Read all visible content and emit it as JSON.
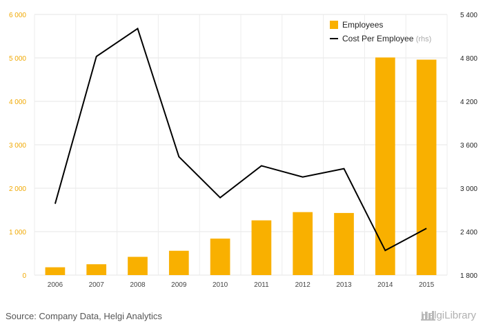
{
  "chart_data": {
    "type": "bar",
    "categories": [
      "2006",
      "2007",
      "2008",
      "2009",
      "2010",
      "2011",
      "2012",
      "2013",
      "2014",
      "2015"
    ],
    "series": [
      {
        "name": "Employees",
        "kind": "bar",
        "axis": "left",
        "color": "#f9b000",
        "values": [
          180,
          250,
          420,
          560,
          840,
          1260,
          1450,
          1430,
          5010,
          4960
        ]
      },
      {
        "name": "Cost Per Employee",
        "name_suffix": "(rhs)",
        "kind": "line",
        "axis": "right",
        "color": "#000000",
        "values": [
          2785,
          4820,
          5205,
          3435,
          2870,
          3310,
          3155,
          3270,
          2140,
          2445
        ]
      }
    ],
    "y_left": {
      "min": 0,
      "max": 6000,
      "ticks": [
        0,
        1000,
        2000,
        3000,
        4000,
        5000,
        6000
      ],
      "tick_labels": [
        "0",
        "1 000",
        "2 000",
        "3 000",
        "4 000",
        "5 000",
        "6 000"
      ]
    },
    "y_right": {
      "min": 1800,
      "max": 5400,
      "ticks": [
        1800,
        2400,
        3000,
        3600,
        4200,
        4800,
        5400
      ],
      "tick_labels": [
        "1 800",
        "2 400",
        "3 000",
        "3 600",
        "4 200",
        "4 800",
        "5 400"
      ]
    },
    "grid": true,
    "legend_position": "top-right"
  },
  "source_text": "Source: Company Data, Helgi Analytics",
  "brand": "HelgiLibrary",
  "brand_icon": "library-building-icon"
}
